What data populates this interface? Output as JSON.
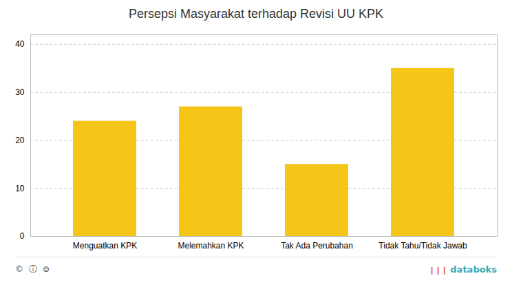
{
  "chart_data": {
    "type": "bar",
    "title": "Persepsi Masyarakat terhadap Revisi UU KPK",
    "categories": [
      "Menguatkan KPK",
      "Melemahkan KPK",
      "Tak Ada Perubahan",
      "Tidak Tahu/Tidak Jawab"
    ],
    "values": [
      24,
      27,
      15,
      35
    ],
    "color": "#F5C518",
    "ylim": [
      0,
      42
    ],
    "yticks": [
      0,
      10,
      20,
      30,
      40
    ],
    "grid": true,
    "annotations": [
      "©",
      "ⓘ",
      "⊜",
      "❙❙❙",
      "databoks"
    ]
  }
}
